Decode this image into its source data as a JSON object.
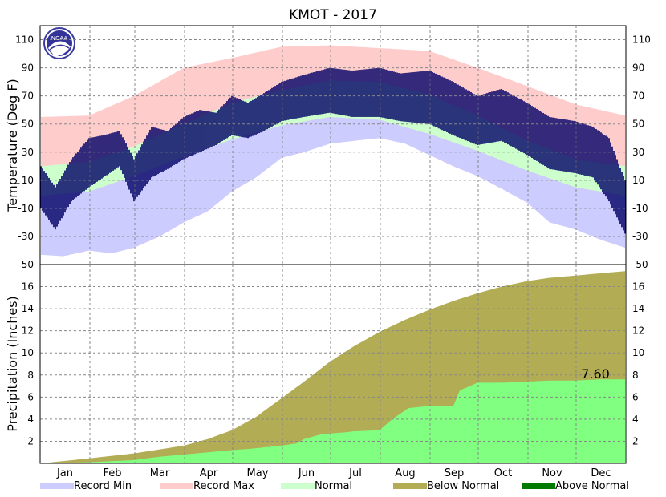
{
  "title": "KMOT - 2017",
  "logo_text": "NOAA",
  "temp_axis": {
    "label": "Temperature (Deg F)",
    "ylim": [
      -50,
      120
    ],
    "ticks": [
      110,
      90,
      70,
      50,
      30,
      10,
      -10,
      -30,
      -50
    ]
  },
  "precip_axis": {
    "label": "Precipitation (Inches)",
    "ylim": [
      0,
      18
    ],
    "ticks": [
      16,
      14,
      12,
      10,
      8,
      6,
      4,
      2
    ]
  },
  "months": [
    "Jan",
    "Feb",
    "Mar",
    "Apr",
    "May",
    "Jun",
    "Jul",
    "Aug",
    "Sep",
    "Oct",
    "Nov",
    "Dec"
  ],
  "legend": [
    {
      "label": "Record Min",
      "color": "#ccccff"
    },
    {
      "label": "Record Max",
      "color": "#ffcccc"
    },
    {
      "label": "Normal",
      "color": "#ccffcc"
    },
    {
      "label": "Below Normal",
      "color": "#b2ac54"
    },
    {
      "label": "Above Normal",
      "color": "#007a00"
    }
  ],
  "colors": {
    "observed": "#000066",
    "precip_observed": "#80ff80"
  },
  "precip_annotation": "7.60",
  "chart_data": [
    {
      "type": "bar",
      "name": "temperature",
      "x": "day of year (1-365)",
      "record_max_days": [
        1,
        31,
        59,
        90,
        120,
        151,
        181,
        212,
        243,
        273,
        304,
        334,
        365
      ],
      "record_max_values": [
        55,
        56,
        70,
        90,
        97,
        105,
        106,
        104,
        102,
        90,
        77,
        64,
        56
      ],
      "record_min_days": [
        1,
        15,
        31,
        45,
        59,
        75,
        90,
        105,
        120,
        135,
        151,
        165,
        181,
        196,
        212,
        228,
        243,
        258,
        273,
        288,
        304,
        318,
        334,
        349,
        365
      ],
      "record_min_values": [
        -43,
        -44,
        -40,
        -42,
        -38,
        -30,
        -20,
        -12,
        2,
        12,
        26,
        30,
        36,
        38,
        40,
        36,
        28,
        20,
        13,
        4,
        -6,
        -20,
        -25,
        -32,
        -38
      ],
      "normal_max_days": [
        1,
        31,
        59,
        90,
        120,
        151,
        181,
        212,
        243,
        273,
        304,
        334,
        365
      ],
      "normal_max_values": [
        20,
        23,
        34,
        50,
        65,
        74,
        81,
        80,
        71,
        56,
        38,
        25,
        20
      ],
      "normal_min_days": [
        1,
        31,
        59,
        90,
        120,
        151,
        181,
        212,
        243,
        273,
        304,
        334,
        365
      ],
      "normal_min_values": [
        -1,
        2,
        13,
        27,
        39,
        49,
        55,
        53,
        43,
        31,
        17,
        5,
        -1
      ],
      "observed_high_days": [
        1,
        10,
        20,
        31,
        40,
        50,
        59,
        70,
        80,
        90,
        100,
        110,
        120,
        130,
        140,
        151,
        165,
        181,
        195,
        212,
        225,
        243,
        258,
        273,
        288,
        304,
        318,
        334,
        345,
        355,
        365
      ],
      "observed_high_values": [
        20,
        5,
        25,
        40,
        42,
        45,
        25,
        48,
        45,
        55,
        60,
        58,
        70,
        65,
        72,
        80,
        85,
        90,
        88,
        90,
        86,
        88,
        80,
        70,
        75,
        65,
        55,
        52,
        48,
        40,
        10
      ],
      "observed_low_days": [
        1,
        10,
        20,
        31,
        40,
        50,
        59,
        70,
        80,
        90,
        100,
        110,
        120,
        130,
        140,
        151,
        165,
        181,
        195,
        212,
        225,
        243,
        258,
        273,
        288,
        304,
        318,
        334,
        345,
        355,
        365
      ],
      "observed_low_values": [
        -10,
        -25,
        -5,
        5,
        12,
        20,
        -5,
        12,
        18,
        25,
        30,
        35,
        42,
        40,
        45,
        52,
        55,
        58,
        55,
        55,
        52,
        50,
        42,
        35,
        38,
        28,
        18,
        15,
        12,
        -5,
        -28
      ]
    },
    {
      "type": "area",
      "name": "precipitation",
      "x": "day of year (1-365)",
      "normal_cumulative_days": [
        1,
        31,
        59,
        90,
        105,
        120,
        135,
        151,
        165,
        181,
        196,
        212,
        228,
        243,
        258,
        273,
        288,
        304,
        318,
        334,
        349,
        365
      ],
      "normal_cumulative_values": [
        0,
        0.45,
        0.9,
        1.6,
        2.2,
        3.0,
        4.2,
        5.9,
        7.4,
        9.2,
        10.6,
        11.9,
        13.0,
        13.9,
        14.7,
        15.4,
        16.0,
        16.5,
        16.8,
        17.0,
        17.2,
        17.4
      ],
      "observed_cumulative_days": [
        1,
        31,
        59,
        75,
        90,
        105,
        120,
        130,
        151,
        160,
        165,
        175,
        181,
        190,
        196,
        212,
        220,
        230,
        243,
        258,
        262,
        273,
        288,
        304,
        318,
        334,
        349,
        365
      ],
      "observed_cumulative_values": [
        0,
        0.1,
        0.3,
        0.6,
        0.8,
        1.0,
        1.2,
        1.3,
        1.6,
        1.8,
        2.2,
        2.6,
        2.7,
        2.8,
        2.9,
        3.0,
        4.0,
        5.0,
        5.2,
        5.2,
        6.6,
        7.3,
        7.3,
        7.4,
        7.5,
        7.5,
        7.6,
        7.6
      ]
    }
  ]
}
